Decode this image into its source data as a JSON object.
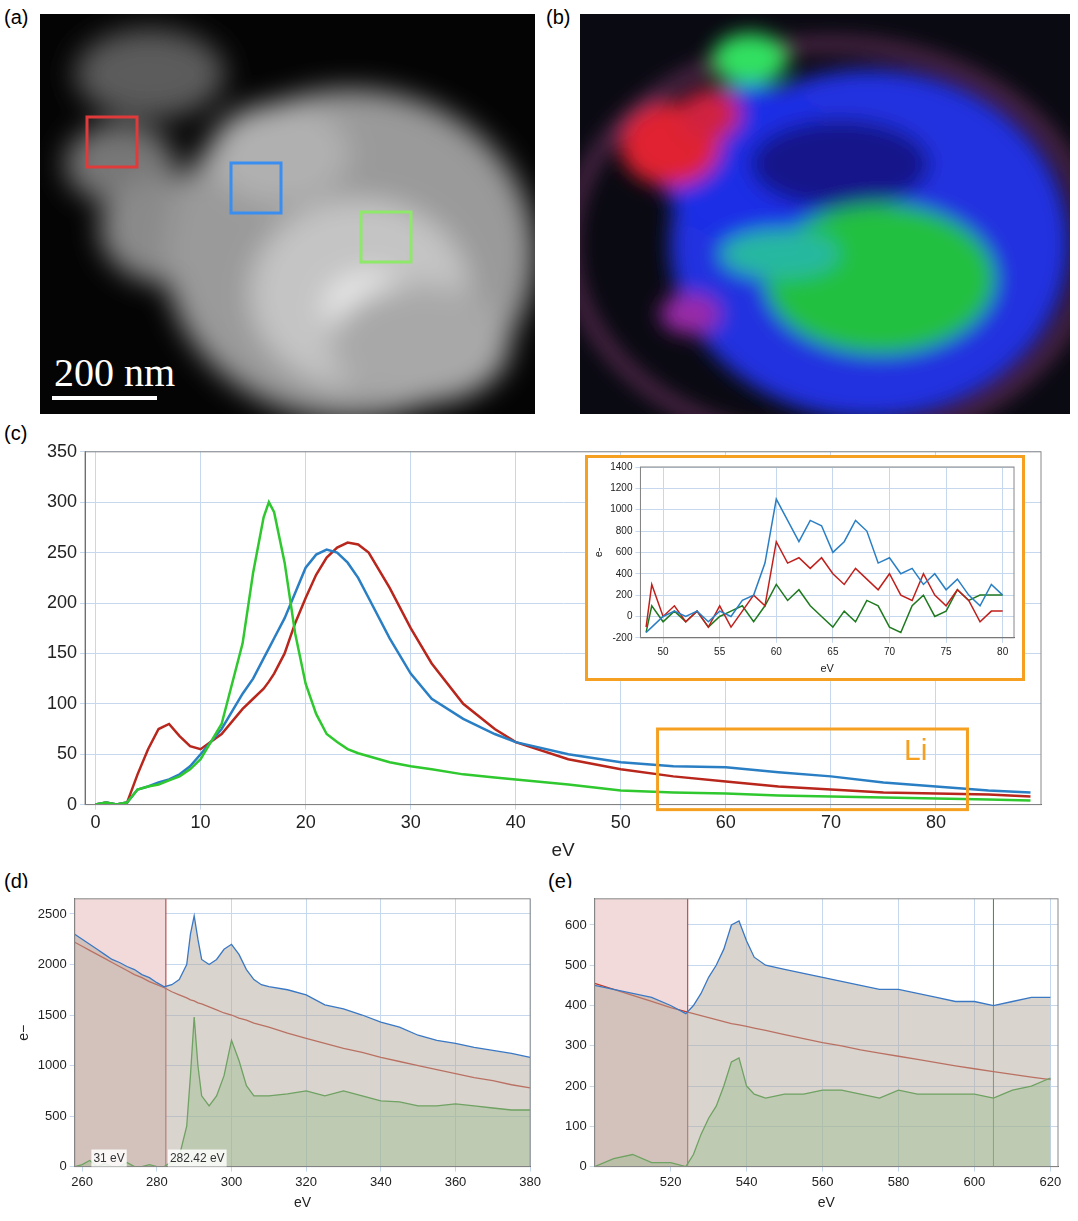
{
  "images": [
    {
      "panel": "(a)",
      "scale_bar": "200 nm",
      "boxes": [
        "#e03a3a",
        "#3a8ef0",
        "#8ee86a"
      ]
    },
    {
      "panel": "(b)"
    }
  ],
  "chart_data": [
    {
      "panel": "(c)",
      "type": "line",
      "xlabel": "eV",
      "grid": true,
      "xlim": [
        -1,
        90
      ],
      "xticks": [
        0,
        10,
        20,
        30,
        40,
        50,
        60,
        70,
        80
      ],
      "ylim": [
        0,
        350
      ],
      "yticks": [
        0,
        50,
        100,
        150,
        200,
        250,
        300,
        350
      ],
      "x": [
        0,
        1,
        2,
        3,
        4,
        5,
        6,
        7,
        8,
        9,
        10,
        12,
        14,
        15,
        16,
        16.5,
        17,
        18,
        19,
        20,
        21,
        22,
        23,
        24,
        25,
        26,
        28,
        30,
        32,
        35,
        38,
        40,
        45,
        50,
        55,
        60,
        65,
        70,
        75,
        80,
        85,
        89
      ],
      "series": [
        {
          "color": "#2fc82f",
          "values": [
            0,
            2,
            0,
            2,
            15,
            18,
            20,
            24,
            28,
            35,
            45,
            80,
            160,
            230,
            285,
            300,
            290,
            240,
            170,
            120,
            90,
            70,
            62,
            55,
            51,
            48,
            42,
            38,
            35,
            30,
            27,
            25,
            20,
            14,
            12,
            11,
            9,
            8,
            7,
            6,
            5,
            4
          ]
        },
        {
          "color": "#2a7fc4",
          "values": [
            0,
            2,
            0,
            2,
            15,
            18,
            22,
            25,
            30,
            38,
            50,
            75,
            110,
            125,
            145,
            155,
            165,
            185,
            210,
            235,
            248,
            253,
            250,
            240,
            225,
            205,
            165,
            130,
            105,
            85,
            70,
            62,
            50,
            42,
            38,
            37,
            32,
            28,
            22,
            18,
            14,
            12
          ]
        },
        {
          "color": "#b8261c",
          "values": [
            0,
            2,
            0,
            2,
            30,
            55,
            75,
            80,
            68,
            58,
            55,
            70,
            95,
            105,
            115,
            122,
            130,
            150,
            180,
            205,
            228,
            245,
            255,
            260,
            258,
            250,
            215,
            175,
            140,
            100,
            75,
            62,
            45,
            35,
            28,
            23,
            18,
            15,
            12,
            11,
            10,
            8
          ]
        }
      ],
      "annotations": [
        {
          "text": "Li",
          "x": [
            53.5,
            83
          ],
          "y": [
            -5,
            75
          ],
          "color": "#f5a020"
        }
      ]
    },
    {
      "type": "line",
      "xlabel": "eV",
      "ylabel": "e-",
      "grid": true,
      "xlim": [
        48,
        81
      ],
      "xticks": [
        50,
        55,
        60,
        65,
        70,
        75,
        80
      ],
      "ylim": [
        -200,
        1400
      ],
      "yticks": [
        -200,
        0,
        200,
        400,
        600,
        800,
        1000,
        1200,
        1400
      ],
      "x": [
        48.5,
        49,
        50,
        51,
        52,
        53,
        54,
        55,
        56,
        57,
        58,
        59,
        60,
        61,
        62,
        63,
        64,
        65,
        66,
        67,
        68,
        69,
        70,
        71,
        72,
        73,
        74,
        75,
        76,
        77,
        78,
        79,
        80
      ],
      "series": [
        {
          "color": "#2a7fc4",
          "values": [
            -150,
            -100,
            0,
            50,
            0,
            50,
            -50,
            50,
            0,
            150,
            200,
            500,
            1100,
            900,
            700,
            900,
            850,
            600,
            700,
            900,
            800,
            500,
            550,
            400,
            450,
            300,
            400,
            250,
            350,
            200,
            100,
            300,
            200
          ]
        },
        {
          "color": "#c0201c",
          "values": [
            -100,
            300,
            0,
            100,
            -50,
            50,
            -100,
            100,
            -100,
            50,
            200,
            100,
            700,
            500,
            550,
            450,
            550,
            400,
            300,
            450,
            350,
            250,
            400,
            200,
            150,
            400,
            200,
            100,
            250,
            150,
            -50,
            50,
            50
          ]
        },
        {
          "color": "#1f7a1f",
          "values": [
            -150,
            100,
            -50,
            50,
            -50,
            50,
            -100,
            0,
            50,
            100,
            -50,
            100,
            300,
            150,
            250,
            100,
            0,
            -100,
            50,
            -50,
            150,
            100,
            -100,
            -150,
            100,
            200,
            0,
            50,
            250,
            150,
            200,
            200,
            200
          ]
        }
      ]
    },
    {
      "panel": "(d)",
      "type": "line",
      "xlabel": "eV",
      "ylabel": "e−",
      "grid": true,
      "xlim": [
        258,
        380
      ],
      "xticks": [
        260,
        280,
        300,
        320,
        340,
        360,
        380
      ],
      "ylim": [
        0,
        2650
      ],
      "yticks": [
        0,
        500,
        1000,
        1500,
        2000,
        2500
      ],
      "x": [
        258,
        260,
        262,
        264,
        266,
        268,
        270,
        272,
        274,
        276,
        278,
        280,
        282,
        284,
        286,
        288,
        289,
        290,
        291,
        292,
        294,
        296,
        298,
        300,
        302,
        304,
        306,
        308,
        310,
        315,
        320,
        325,
        330,
        335,
        340,
        345,
        350,
        355,
        360,
        365,
        370,
        375,
        380
      ],
      "series": [
        {
          "type": "area",
          "color": "#3a78c4",
          "values": [
            2300,
            2250,
            2200,
            2150,
            2100,
            2050,
            2020,
            1980,
            1950,
            1900,
            1870,
            1820,
            1780,
            1800,
            1850,
            2000,
            2300,
            2480,
            2250,
            2050,
            2000,
            2050,
            2150,
            2200,
            2100,
            1950,
            1850,
            1800,
            1780,
            1750,
            1700,
            1600,
            1560,
            1500,
            1430,
            1380,
            1300,
            1250,
            1220,
            1180,
            1150,
            1120,
            1080
          ]
        },
        {
          "type": "area",
          "color": "#2a9a2a",
          "values": [
            0,
            20,
            60,
            0,
            30,
            0,
            0,
            40,
            0,
            0,
            20,
            0,
            0,
            50,
            100,
            400,
            900,
            1480,
            1000,
            700,
            600,
            700,
            900,
            1250,
            1050,
            800,
            700,
            700,
            700,
            720,
            750,
            700,
            750,
            700,
            650,
            640,
            600,
            600,
            620,
            600,
            580,
            560,
            560
          ]
        },
        {
          "type": "line",
          "color": "#c0392b",
          "values": [
            2220,
            2180,
            2140,
            2100,
            2060,
            2020,
            1980,
            1940,
            1900,
            1870,
            1830,
            1800,
            1770,
            1730,
            1700,
            1670,
            1650,
            1640,
            1620,
            1610,
            1580,
            1550,
            1520,
            1500,
            1470,
            1450,
            1420,
            1400,
            1380,
            1320,
            1270,
            1220,
            1170,
            1130,
            1080,
            1040,
            1000,
            960,
            920,
            880,
            850,
            810,
            780
          ]
        }
      ],
      "regions": [
        {
          "x": [
            258,
            282.42
          ],
          "color": "#f3dada"
        }
      ],
      "annotations": [
        {
          "text": "31 eV",
          "x": 263,
          "y": 80
        },
        {
          "text": "282.42 eV",
          "x": 283.5,
          "y": 80
        }
      ]
    },
    {
      "panel": "(e)",
      "type": "line",
      "xlabel": "eV",
      "grid": true,
      "xlim": [
        500,
        622
      ],
      "xticks": [
        520,
        540,
        560,
        580,
        600,
        620
      ],
      "ylim": [
        0,
        665
      ],
      "yticks": [
        0,
        100,
        200,
        300,
        400,
        500,
        600
      ],
      "x": [
        500,
        505,
        510,
        515,
        520,
        524,
        526,
        528,
        530,
        532,
        534,
        536,
        538,
        540,
        542,
        545,
        550,
        555,
        560,
        565,
        570,
        575,
        580,
        585,
        590,
        595,
        600,
        605,
        610,
        615,
        620
      ],
      "series": [
        {
          "type": "area",
          "color": "#3a78c4",
          "values": [
            450,
            440,
            430,
            420,
            400,
            380,
            400,
            430,
            470,
            500,
            540,
            600,
            610,
            560,
            520,
            500,
            490,
            480,
            470,
            460,
            450,
            440,
            440,
            430,
            420,
            410,
            410,
            400,
            410,
            420,
            420
          ]
        },
        {
          "type": "area",
          "color": "#2a9a2a",
          "values": [
            0,
            20,
            30,
            10,
            10,
            0,
            30,
            80,
            120,
            150,
            200,
            260,
            270,
            200,
            180,
            170,
            180,
            180,
            190,
            190,
            180,
            170,
            190,
            180,
            180,
            180,
            180,
            170,
            190,
            200,
            220
          ]
        },
        {
          "type": "line",
          "color": "#c0392b",
          "values": [
            455,
            440,
            425,
            410,
            395,
            385,
            380,
            375,
            370,
            365,
            360,
            355,
            352,
            348,
            344,
            338,
            328,
            318,
            308,
            300,
            290,
            282,
            274,
            266,
            258,
            250,
            243,
            236,
            229,
            222,
            216
          ]
        }
      ],
      "regions": [
        {
          "x": [
            500,
            524.5
          ],
          "color": "#f3dada"
        }
      ],
      "vlines": [
        {
          "x": 605,
          "color": "#2a9a2a"
        }
      ]
    }
  ]
}
